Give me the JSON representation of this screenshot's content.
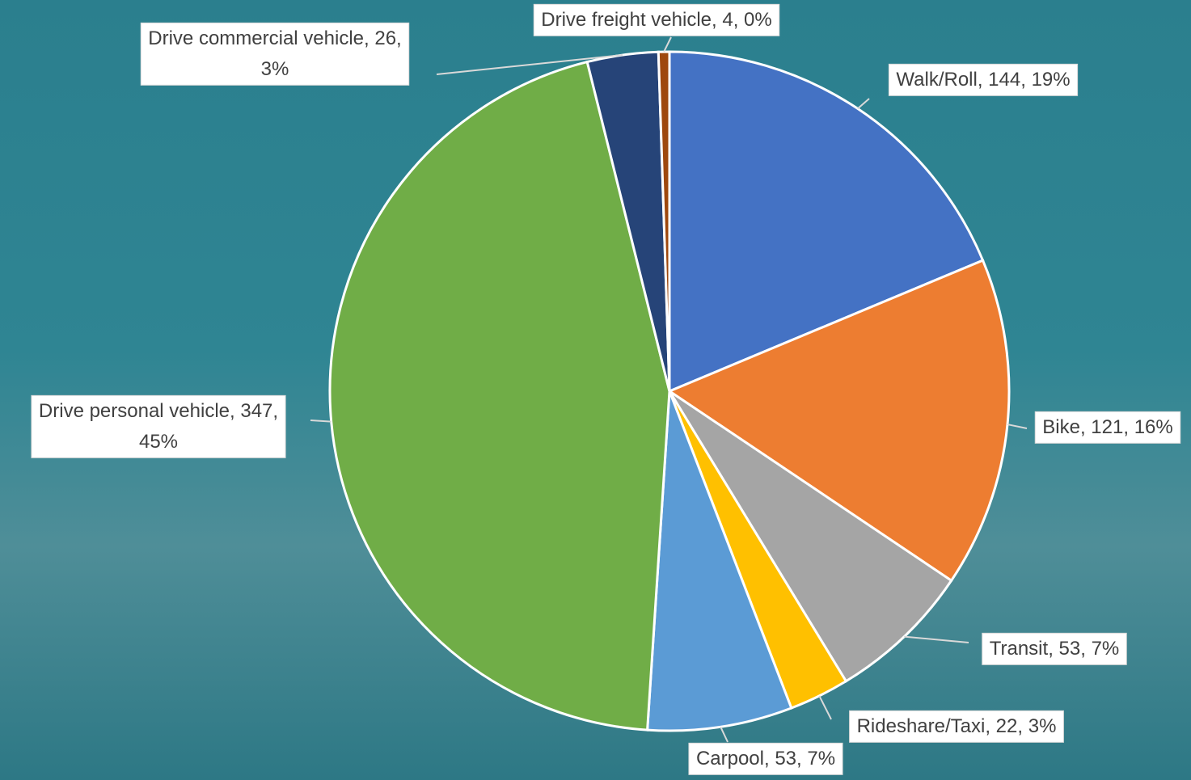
{
  "chart_data": {
    "type": "pie",
    "categories": [
      "Walk/Roll",
      "Bike",
      "Transit",
      "Rideshare/Taxi",
      "Carpool",
      "Drive personal vehicle",
      "Drive commercial vehicle",
      "Drive freight vehicle"
    ],
    "values": [
      144,
      121,
      53,
      22,
      53,
      347,
      26,
      4
    ],
    "value_labels": [
      "19%",
      "16%",
      "7%",
      "3%",
      "7%",
      "45%",
      "3%",
      "0%"
    ],
    "colors": [
      "#4472c4",
      "#ed7d31",
      "#a5a5a5",
      "#ffc000",
      "#5b9bd5",
      "#70ad47",
      "#264478",
      "#9e480e"
    ]
  }
}
